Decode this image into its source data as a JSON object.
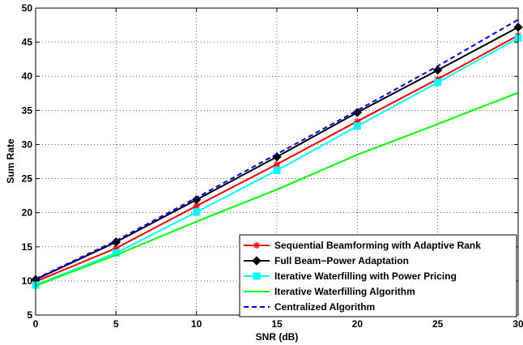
{
  "chart_data": {
    "type": "line",
    "title": "",
    "xlabel": "SNR (dB)",
    "ylabel": "Sum Rate",
    "xlim": [
      0,
      30
    ],
    "ylim": [
      5,
      50
    ],
    "xticks": [
      0,
      5,
      10,
      15,
      20,
      25,
      30
    ],
    "yticks": [
      5,
      10,
      15,
      20,
      25,
      30,
      35,
      40,
      45,
      50
    ],
    "grid": true,
    "legend_position": "bottom-right",
    "x": [
      0,
      5,
      10,
      15,
      20,
      25,
      30
    ],
    "series": [
      {
        "name": "Sequential Beamforming with Adaptive Rank",
        "values": [
          9.9,
          14.8,
          21.0,
          27.1,
          33.4,
          39.6,
          46.0
        ],
        "color": "#ff0000",
        "marker": "star",
        "dash": "solid"
      },
      {
        "name": "Full Beam−Power Adaptation",
        "values": [
          10.2,
          15.7,
          21.9,
          28.2,
          34.7,
          40.9,
          47.2
        ],
        "color": "#000000",
        "marker": "diamond",
        "dash": "solid"
      },
      {
        "name": "Iterative Waterfilling with Power Pricing",
        "values": [
          9.4,
          14.1,
          20.1,
          26.2,
          32.7,
          39.1,
          45.6
        ],
        "color": "#00ffff",
        "marker": "square",
        "dash": "solid"
      },
      {
        "name": "Iterative Waterfilling Algorithm",
        "values": [
          9.3,
          13.8,
          18.7,
          23.4,
          28.5,
          33.0,
          37.6
        ],
        "color": "#00ff00",
        "marker": "none",
        "dash": "solid"
      },
      {
        "name": "Centralized Algorithm",
        "values": [
          10.3,
          15.9,
          22.2,
          28.6,
          35.0,
          41.5,
          48.3
        ],
        "color": "#0000ff",
        "marker": "none",
        "dash": "dashed"
      }
    ]
  }
}
